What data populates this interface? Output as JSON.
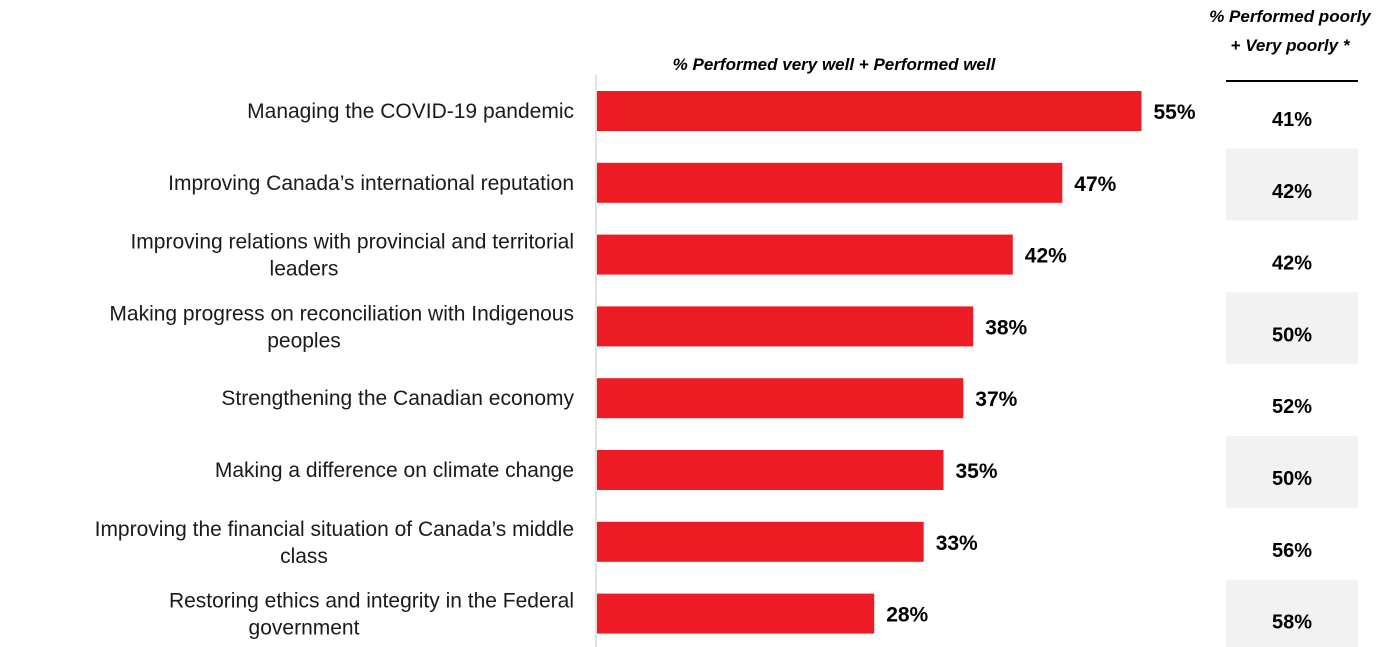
{
  "chart_data": {
    "type": "bar",
    "orientation": "horizontal",
    "title": "",
    "series_header": "% Performed very well + Performed well",
    "side_header_line1": "% Performed poorly",
    "side_header_line2": "+ Very poorly *",
    "categories": [
      "Managing the COVID-19 pandemic",
      "Improving Canada’s international reputation",
      "Improving relations with provincial and territorial leaders",
      "Making progress on reconciliation with Indigenous peoples",
      "Strengthening the Canadian economy",
      "Making a difference on climate change",
      "Improving the financial situation of Canada’s middle class",
      "Restoring ethics and integrity in the Federal government"
    ],
    "category_lines": [
      [
        "Managing the COVID-19 pandemic"
      ],
      [
        "Improving Canada’s international reputation"
      ],
      [
        "Improving relations with provincial and territorial",
        "leaders"
      ],
      [
        "Making progress on reconciliation with Indigenous",
        "peoples"
      ],
      [
        "Strengthening the Canadian economy"
      ],
      [
        "Making a difference on climate change"
      ],
      [
        "Improving the financial situation of Canada’s middle",
        "class"
      ],
      [
        "Restoring ethics and integrity in the Federal",
        "government"
      ]
    ],
    "values": [
      55,
      47,
      42,
      38,
      37,
      35,
      33,
      28
    ],
    "value_labels": [
      "55%",
      "47%",
      "42%",
      "38%",
      "37%",
      "35%",
      "33%",
      "28%"
    ],
    "side_values": [
      "41%",
      "42%",
      "42%",
      "50%",
      "52%",
      "50%",
      "56%",
      "58%"
    ],
    "xlim": [
      0,
      60
    ],
    "grid": false,
    "legend": "none",
    "colors": {
      "bar": "#ed1c24",
      "shade": "#f2f2f2",
      "axis": "#d9d9d9"
    }
  }
}
